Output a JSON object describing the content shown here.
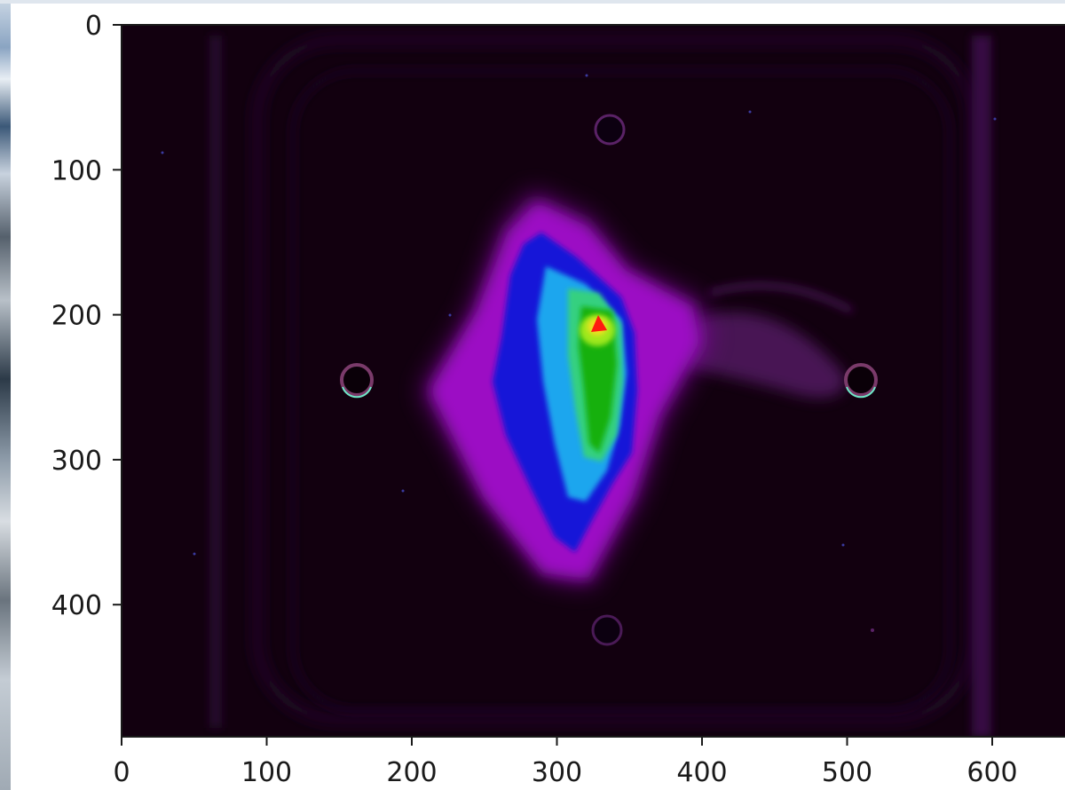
{
  "chart_data": {
    "type": "heatmap",
    "title": "",
    "xlabel": "",
    "ylabel": "",
    "colormap": "nipy_spectral-like (black → purple → blue → cyan → green → yellow → red)",
    "xlim": [
      0,
      650
    ],
    "ylim": [
      490,
      0
    ],
    "y_inverted": true,
    "x_ticks": [
      0,
      100,
      200,
      300,
      400,
      500,
      600
    ],
    "x_tick_labels": [
      "0",
      "100",
      "200",
      "300",
      "400",
      "500",
      "600"
    ],
    "y_ticks": [
      0,
      100,
      200,
      300,
      400
    ],
    "y_tick_labels": [
      "0",
      "100",
      "200",
      "300",
      "400"
    ],
    "grid": false,
    "features": {
      "hot_spot_peak": [
        328,
        210
      ],
      "mount_holes": [
        [
          335,
          72
        ],
        [
          163,
          245
        ],
        [
          510,
          245
        ],
        [
          335,
          420
        ]
      ]
    }
  }
}
